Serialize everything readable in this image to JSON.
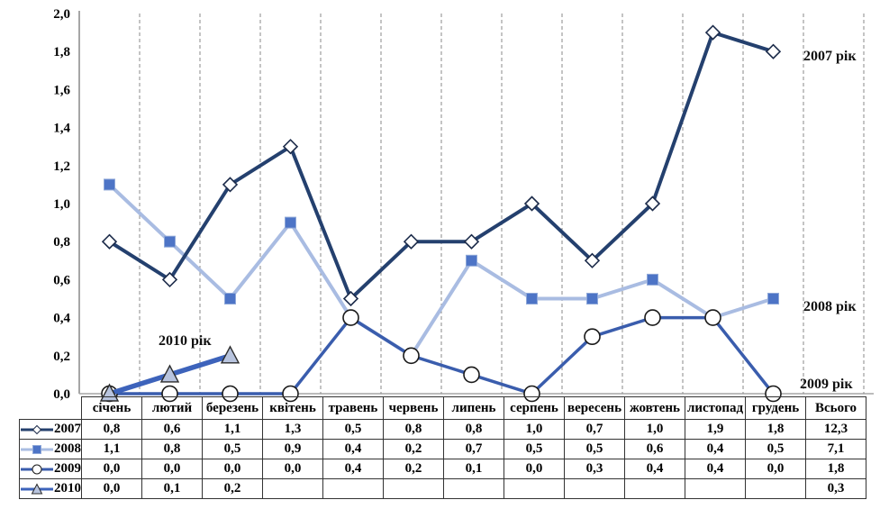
{
  "chart_data": {
    "type": "line",
    "title": "",
    "xlabel": "",
    "ylabel": "",
    "categories": [
      "січень",
      "лютий",
      "березень",
      "квітень",
      "травень",
      "червень",
      "липень",
      "серпень",
      "вересень",
      "жовтень",
      "листопад",
      "грудень"
    ],
    "y_axis": {
      "min": 0.0,
      "max": 2.0,
      "step": 0.2,
      "tick_labels": [
        "0,0",
        "0,2",
        "0,4",
        "0,6",
        "0,8",
        "1,0",
        "1,2",
        "1,4",
        "1,6",
        "1,8",
        "2,0"
      ]
    },
    "grid": "vertical-dashed-only",
    "legend_position": "table-left-column",
    "series": [
      {
        "name": "2007",
        "annotation": "2007 рік",
        "marker": "diamond",
        "line_color": "#24406e",
        "marker_fill": "#ffffff",
        "marker_stroke": "#1c2b4a",
        "values": [
          0.8,
          0.6,
          1.1,
          1.3,
          0.5,
          0.8,
          0.8,
          1.0,
          0.7,
          1.0,
          1.9,
          1.8
        ],
        "total": 12.3
      },
      {
        "name": "2008",
        "annotation": "2008 рік",
        "marker": "square",
        "line_color": "#a9bce2",
        "marker_fill": "#4d74c6",
        "marker_stroke": "#8fa8d8",
        "values": [
          1.1,
          0.8,
          0.5,
          0.9,
          0.4,
          0.2,
          0.7,
          0.5,
          0.5,
          0.6,
          0.4,
          0.5
        ],
        "total": 7.1
      },
      {
        "name": "2009",
        "annotation": "2009 рік",
        "marker": "circle",
        "line_color": "#3a5dad",
        "marker_fill": "#ffffff",
        "marker_stroke": "#1a1a1a",
        "values": [
          0.0,
          0.0,
          0.0,
          0.0,
          0.4,
          0.2,
          0.1,
          0.0,
          0.3,
          0.4,
          0.4,
          0.0
        ],
        "total": 1.8
      },
      {
        "name": "2010",
        "annotation": "2010 рік",
        "marker": "triangle",
        "line_color": "#3d63bb",
        "marker_fill": "#b8c4de",
        "marker_stroke": "#2b2b2b",
        "values": [
          0.0,
          0.1,
          0.2
        ],
        "total": 0.3
      }
    ]
  },
  "table": {
    "total_header": "Всього",
    "rows": [
      {
        "year": "2007",
        "cells": [
          "0,8",
          "0,6",
          "1,1",
          "1,3",
          "0,5",
          "0,8",
          "0,8",
          "1,0",
          "0,7",
          "1,0",
          "1,9",
          "1,8"
        ],
        "total": "12,3"
      },
      {
        "year": "2008",
        "cells": [
          "1,1",
          "0,8",
          "0,5",
          "0,9",
          "0,4",
          "0,2",
          "0,7",
          "0,5",
          "0,5",
          "0,6",
          "0,4",
          "0,5"
        ],
        "total": "7,1"
      },
      {
        "year": "2009",
        "cells": [
          "0,0",
          "0,0",
          "0,0",
          "0,0",
          "0,4",
          "0,2",
          "0,1",
          "0,0",
          "0,3",
          "0,4",
          "0,4",
          "0,0"
        ],
        "total": "1,8"
      },
      {
        "year": "2010",
        "cells": [
          "0,0",
          "0,1",
          "0,2",
          "",
          "",
          "",
          "",
          "",
          "",
          "",
          "",
          ""
        ],
        "total": "0,3"
      }
    ]
  }
}
